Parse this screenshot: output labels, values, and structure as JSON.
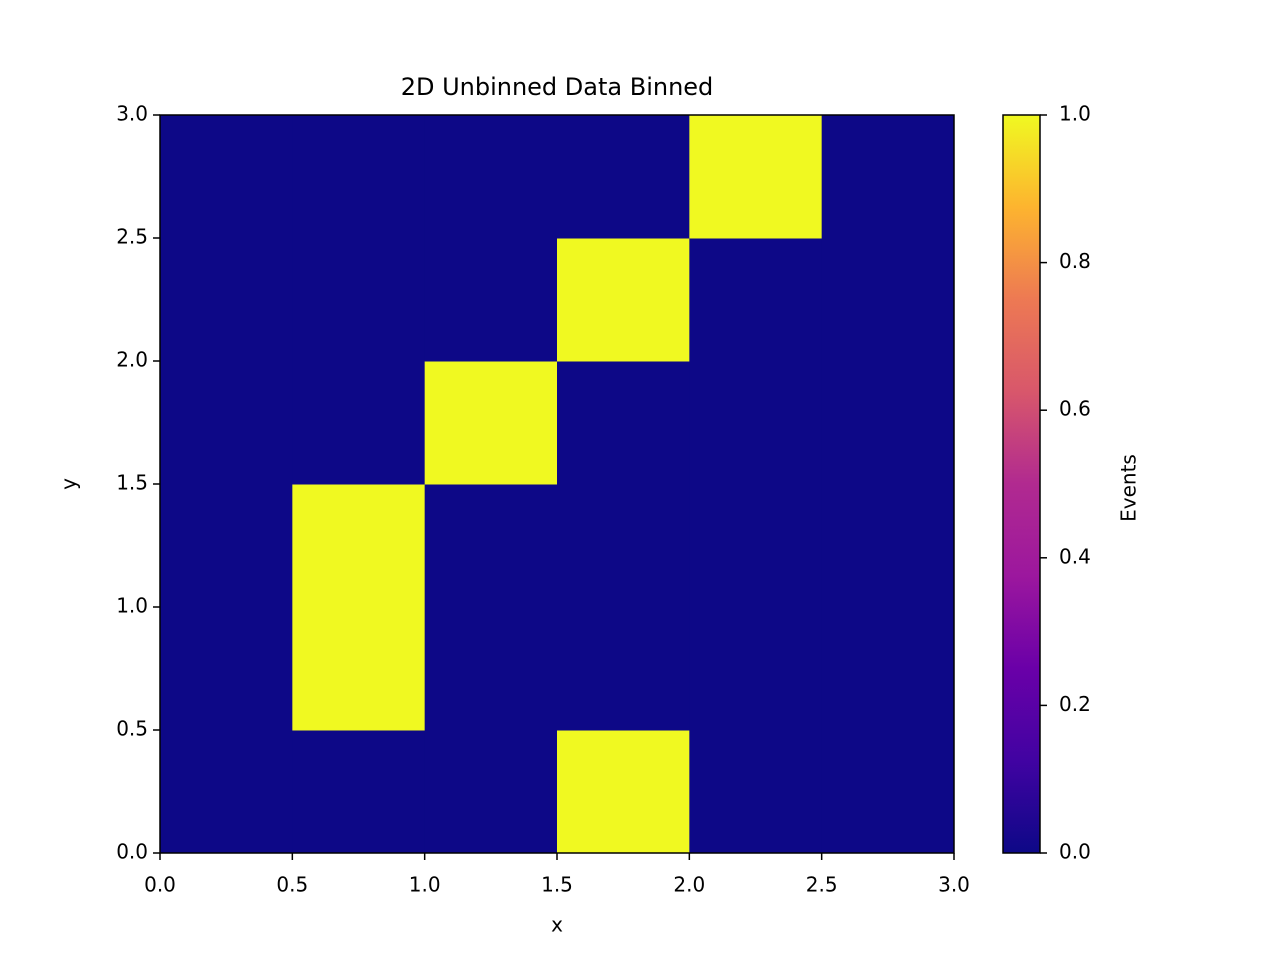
{
  "chart_data": {
    "type": "heatmap",
    "title": "2D Unbinned Data Binned",
    "x_label": "x",
    "y_label": "y",
    "colorbar_label": "Events",
    "colormap": "plasma",
    "xbins": [
      0,
      0.5,
      1,
      1.5,
      2,
      2.5,
      3
    ],
    "ybins": [
      0,
      0.5,
      1,
      1.5,
      2,
      2.5,
      3
    ],
    "values": [
      [
        0,
        0,
        0,
        1,
        0,
        0
      ],
      [
        0,
        1,
        0,
        0,
        0,
        0
      ],
      [
        0,
        1,
        0,
        0,
        0,
        0
      ],
      [
        0,
        0,
        1,
        0,
        0,
        0
      ],
      [
        0,
        0,
        0,
        1,
        0,
        0
      ],
      [
        0,
        0,
        0,
        0,
        1,
        0
      ]
    ],
    "xlim": [
      0,
      3
    ],
    "ylim": [
      0,
      3
    ],
    "xticks": [
      {
        "value": 0,
        "label": "0.0"
      },
      0.5,
      {
        "value": 1,
        "label": "1.0"
      },
      1.5,
      {
        "value": 2,
        "label": "2.0"
      },
      2.5,
      {
        "value": 3,
        "label": "3.0"
      }
    ],
    "yticks": [
      {
        "value": 0,
        "label": "0.0"
      },
      0.5,
      {
        "value": 1,
        "label": "1.0"
      },
      1.5,
      {
        "value": 2,
        "label": "2.0"
      },
      2.5,
      {
        "value": 3,
        "label": "3.0"
      }
    ],
    "clim": [
      0,
      1
    ],
    "cticks": [
      {
        "value": 0,
        "label": "0.0"
      },
      0.2,
      0.4,
      0.6,
      0.8,
      {
        "value": 1,
        "label": "1.0"
      }
    ]
  }
}
